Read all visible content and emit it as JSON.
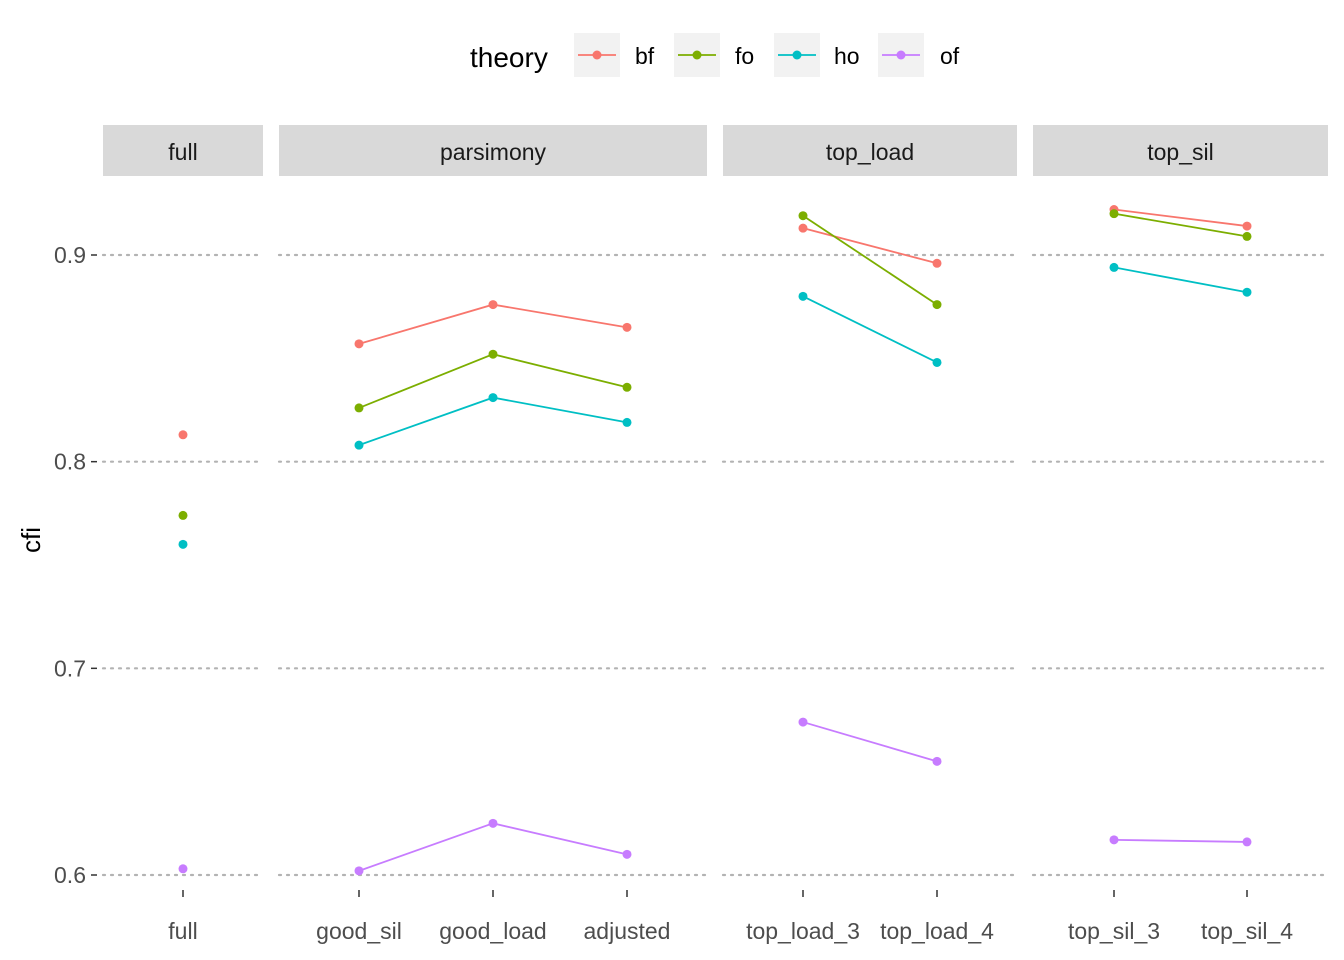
{
  "chart_data": {
    "type": "line",
    "ylabel": "cfi",
    "ylim": [
      0.59,
      0.95
    ],
    "yticks": [
      0.6,
      0.7,
      0.8,
      0.9
    ],
    "ytick_labels": [
      "0.6",
      "0.7",
      "0.8",
      "0.9"
    ],
    "grid": "horizontal-dotted",
    "legend": {
      "title": "theory",
      "placement": "top",
      "entries": [
        {
          "name": "bf",
          "color": "#F8766D"
        },
        {
          "name": "fo",
          "color": "#7CAE00"
        },
        {
          "name": "ho",
          "color": "#00BFC4"
        },
        {
          "name": "of",
          "color": "#C77CFF"
        }
      ]
    },
    "facets": [
      {
        "label": "full",
        "categories": [
          "full"
        ],
        "series": [
          {
            "name": "bf",
            "values": [
              0.813
            ]
          },
          {
            "name": "fo",
            "values": [
              0.774
            ]
          },
          {
            "name": "ho",
            "values": [
              0.76
            ]
          },
          {
            "name": "of",
            "values": [
              0.603
            ]
          }
        ]
      },
      {
        "label": "parsimony",
        "categories": [
          "good_sil",
          "good_load",
          "adjusted"
        ],
        "series": [
          {
            "name": "bf",
            "values": [
              0.857,
              0.876,
              0.865
            ]
          },
          {
            "name": "fo",
            "values": [
              0.826,
              0.852,
              0.836
            ]
          },
          {
            "name": "ho",
            "values": [
              0.808,
              0.831,
              0.819
            ]
          },
          {
            "name": "of",
            "values": [
              0.602,
              0.625,
              0.61
            ]
          }
        ]
      },
      {
        "label": "top_load",
        "categories": [
          "top_load_3",
          "top_load_4"
        ],
        "series": [
          {
            "name": "bf",
            "values": [
              0.913,
              0.896
            ]
          },
          {
            "name": "fo",
            "values": [
              0.919,
              0.876
            ]
          },
          {
            "name": "ho",
            "values": [
              0.88,
              0.848
            ]
          },
          {
            "name": "of",
            "values": [
              0.674,
              0.655
            ]
          }
        ]
      },
      {
        "label": "top_sil",
        "categories": [
          "top_sil_3",
          "top_sil_4"
        ],
        "series": [
          {
            "name": "bf",
            "values": [
              0.922,
              0.914
            ]
          },
          {
            "name": "fo",
            "values": [
              0.92,
              0.909
            ]
          },
          {
            "name": "ho",
            "values": [
              0.894,
              0.882
            ]
          },
          {
            "name": "of",
            "values": [
              0.617,
              0.616
            ]
          }
        ]
      }
    ]
  }
}
